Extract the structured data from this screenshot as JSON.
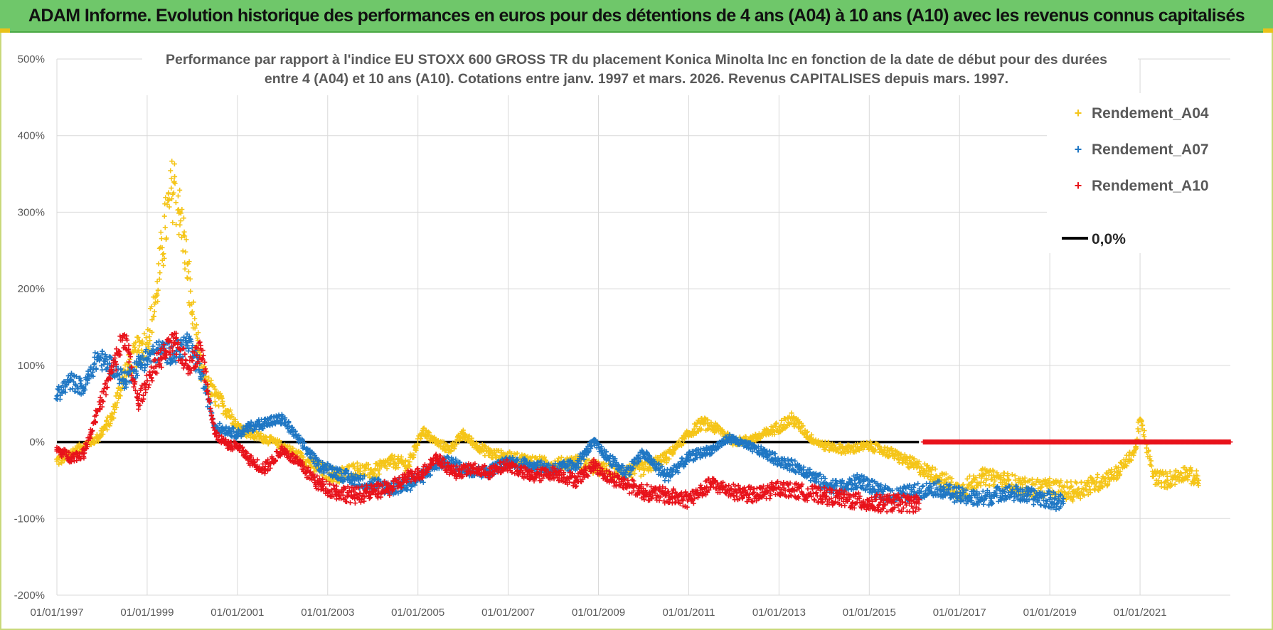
{
  "banner": {
    "title": "ADAM Informe. Evolution historique des performances en euros pour des détentions de 4 ans (A04) à 10 ans (A10) avec les revenus connus capitalisés"
  },
  "colors": {
    "banner_bg": "#6fc76a",
    "a04": "#f5c518",
    "a07": "#1f77c4",
    "a10": "#e8131b",
    "zero": "#000000",
    "grid": "#d9d9d9"
  },
  "chart_data": {
    "type": "scatter",
    "title_line1": "Performance par rapport à l'indice EU STOXX 600 GROSS TR  du placement Konica Minolta Inc en fonction de la date de début pour des durées",
    "title_line2": "entre 4 (A04) et 10 ans (A10).  Cotations entre janv. 1997 et mars. 2026.  Revenus CAPITALISES depuis mars. 1997.",
    "ylim": [
      -200,
      500
    ],
    "xlim": [
      1997.0,
      2023.0
    ],
    "y_ticks": [
      -200,
      -100,
      0,
      100,
      200,
      300,
      400,
      500
    ],
    "y_tick_labels": [
      "-200%",
      "-100%",
      "0%",
      "100%",
      "200%",
      "300%",
      "400%",
      "500%"
    ],
    "x_ticks": [
      1997,
      1999,
      2001,
      2003,
      2005,
      2007,
      2009,
      2011,
      2013,
      2015,
      2017,
      2019,
      2021
    ],
    "x_tick_labels": [
      "01/01/1997",
      "01/01/1999",
      "01/01/2001",
      "01/01/2003",
      "01/01/2005",
      "01/01/2007",
      "01/01/2009",
      "01/01/2011",
      "01/01/2013",
      "01/01/2015",
      "01/01/2017",
      "01/01/2019",
      "01/01/2021"
    ],
    "legend": [
      "Rendement_A04",
      "Rendement_A07",
      "Rendement_A10",
      "0,0%"
    ],
    "series": [
      {
        "name": "Rendement_A04",
        "x": [
          1997.0,
          1997.3,
          1997.6,
          1997.9,
          1998.2,
          1998.5,
          1998.8,
          1999.0,
          1999.2,
          1999.4,
          1999.6,
          1999.8,
          2000.0,
          2000.2,
          2000.5,
          2000.8,
          2001.0,
          2001.3,
          2001.6,
          2002.0,
          2002.4,
          2002.8,
          2003.2,
          2003.6,
          2004.0,
          2004.4,
          2004.8,
          2005.1,
          2005.4,
          2005.7,
          2006.0,
          2006.3,
          2006.6,
          2007.0,
          2007.5,
          2008.0,
          2008.5,
          2009.0,
          2009.5,
          2010.0,
          2010.5,
          2011.0,
          2011.3,
          2011.7,
          2012.0,
          2012.5,
          2013.0,
          2013.3,
          2013.7,
          2014.0,
          2014.5,
          2015.0,
          2015.5,
          2016.0,
          2016.5,
          2017.0,
          2017.5,
          2018.0,
          2018.5,
          2019.0,
          2019.5,
          2020.0,
          2020.5,
          2020.9,
          2021.0,
          2021.3,
          2021.6,
          2022.0,
          2022.3
        ],
        "values": [
          -25,
          -15,
          -5,
          5,
          30,
          90,
          120,
          130,
          190,
          280,
          340,
          270,
          170,
          90,
          60,
          40,
          20,
          10,
          5,
          -5,
          -20,
          -35,
          -45,
          -35,
          -40,
          -25,
          -30,
          15,
          0,
          -10,
          10,
          -5,
          -15,
          -20,
          -25,
          -30,
          -25,
          -35,
          -40,
          -35,
          -20,
          10,
          25,
          15,
          0,
          5,
          20,
          30,
          5,
          -5,
          -10,
          -5,
          -15,
          -30,
          -45,
          -65,
          -45,
          -50,
          -60,
          -60,
          -65,
          -55,
          -40,
          -10,
          30,
          -45,
          -50,
          -40,
          -50
        ]
      },
      {
        "name": "Rendement_A07",
        "x": [
          1997.0,
          1997.3,
          1997.6,
          1997.9,
          1998.2,
          1998.5,
          1998.8,
          1999.0,
          1999.3,
          1999.6,
          1999.9,
          2000.2,
          2000.5,
          2000.8,
          2001.0,
          2001.3,
          2001.6,
          2002.0,
          2002.4,
          2002.8,
          2003.2,
          2003.6,
          2004.0,
          2004.4,
          2004.8,
          2005.1,
          2005.4,
          2005.7,
          2006.0,
          2006.5,
          2007.0,
          2007.5,
          2008.0,
          2008.5,
          2008.9,
          2009.2,
          2009.6,
          2010.0,
          2010.5,
          2011.0,
          2011.5,
          2011.9,
          2012.3,
          2012.7,
          2013.0,
          2013.5,
          2014.0,
          2014.4,
          2014.8,
          2015.2,
          2015.6,
          2016.0,
          2016.5,
          2017.0,
          2017.5,
          2018.0,
          2018.5,
          2019.0,
          2019.3
        ],
        "values": [
          60,
          80,
          70,
          110,
          100,
          80,
          100,
          110,
          120,
          115,
          130,
          90,
          20,
          15,
          10,
          20,
          25,
          30,
          0,
          -30,
          -40,
          -50,
          -55,
          -60,
          -55,
          -45,
          -30,
          -25,
          -35,
          -40,
          -25,
          -30,
          -35,
          -30,
          0,
          -20,
          -40,
          -15,
          -45,
          -20,
          -10,
          5,
          -5,
          -15,
          -25,
          -35,
          -55,
          -60,
          -50,
          -65,
          -70,
          -65,
          -60,
          -70,
          -75,
          -65,
          -70,
          -75,
          -80
        ]
      },
      {
        "name": "Rendement_A10",
        "x": [
          1997.0,
          1997.3,
          1997.6,
          1997.9,
          1998.2,
          1998.5,
          1998.8,
          1999.0,
          1999.3,
          1999.6,
          1999.9,
          2000.2,
          2000.5,
          2000.8,
          2001.0,
          2001.3,
          2001.6,
          2002.0,
          2002.4,
          2002.8,
          2003.2,
          2003.6,
          2004.0,
          2004.4,
          2004.8,
          2005.1,
          2005.4,
          2005.8,
          2006.2,
          2006.6,
          2007.0,
          2007.5,
          2008.0,
          2008.5,
          2008.9,
          2009.2,
          2009.6,
          2010.0,
          2010.5,
          2011.0,
          2011.5,
          2012.0,
          2012.5,
          2013.0,
          2013.5,
          2014.0,
          2014.5,
          2015.0,
          2015.5,
          2016.0,
          2016.1
        ],
        "values": [
          -10,
          -20,
          -15,
          40,
          90,
          140,
          50,
          80,
          110,
          130,
          100,
          120,
          10,
          -5,
          -5,
          -25,
          -35,
          -10,
          -30,
          -55,
          -65,
          -70,
          -65,
          -60,
          -45,
          -40,
          -20,
          -40,
          -35,
          -40,
          -30,
          -45,
          -40,
          -50,
          -30,
          -45,
          -55,
          -65,
          -70,
          -75,
          -55,
          -65,
          -70,
          -60,
          -65,
          -70,
          -75,
          -80,
          -80,
          -80,
          -80
        ]
      },
      {
        "name": "0,0%",
        "x": [
          1997.0,
          2016.1
        ],
        "values": [
          0,
          0
        ]
      }
    ]
  }
}
